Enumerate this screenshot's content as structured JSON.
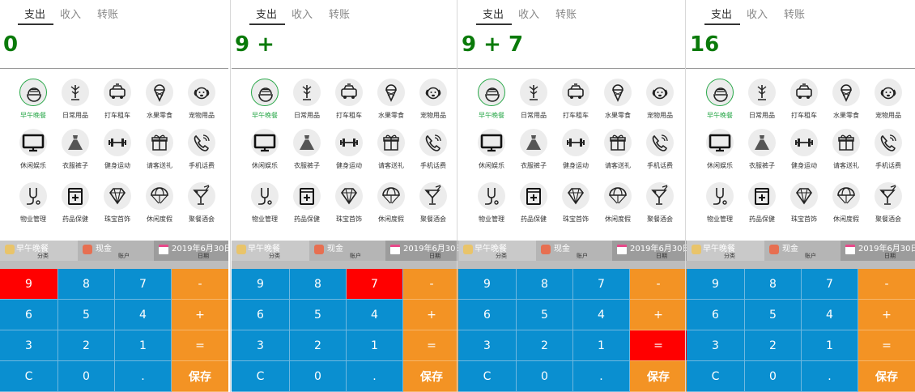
{
  "tabs": [
    "支出",
    "收入",
    "转账"
  ],
  "categories": [
    {
      "label": "早午晚餐",
      "icon": "rice-bowl-icon"
    },
    {
      "label": "日常用品",
      "icon": "plant-icon"
    },
    {
      "label": "打车租车",
      "icon": "taxi-icon"
    },
    {
      "label": "水果零食",
      "icon": "ice-cream-icon"
    },
    {
      "label": "宠物用品",
      "icon": "dog-icon"
    },
    {
      "label": "休闲娱乐",
      "icon": "monitor-icon"
    },
    {
      "label": "衣服裤子",
      "icon": "dress-icon"
    },
    {
      "label": "健身运动",
      "icon": "dumbbell-icon"
    },
    {
      "label": "请客送礼",
      "icon": "gift-icon"
    },
    {
      "label": "手机话费",
      "icon": "phone-icon"
    },
    {
      "label": "物业管理",
      "icon": "plug-icon"
    },
    {
      "label": "药品保健",
      "icon": "medicine-box-icon"
    },
    {
      "label": "珠宝首饰",
      "icon": "diamond-icon"
    },
    {
      "label": "休闲度假",
      "icon": "parachute-icon"
    },
    {
      "label": "聚餐酒会",
      "icon": "cocktail-icon"
    }
  ],
  "info": {
    "category_value": "早午晚餐",
    "category_caption": "分类",
    "account_value": "现金",
    "account_caption": "账户",
    "date_value": "2019年6月30日",
    "date_caption": "日期"
  },
  "keys": [
    "9",
    "8",
    "7",
    "-",
    "6",
    "5",
    "4",
    "+",
    "3",
    "2",
    "1",
    "=",
    "C",
    "0",
    ".",
    "保存"
  ],
  "screens": [
    {
      "display": "0",
      "pressed_key": "9"
    },
    {
      "display": "9 +",
      "pressed_key": "7"
    },
    {
      "display": "9 + 7",
      "pressed_key": "="
    },
    {
      "display": "16",
      "pressed_key": ""
    }
  ],
  "colors": {
    "number_key": "#0a8fd0",
    "operator_key": "#f39324",
    "pressed_key": "#ff0000",
    "display_text": "#0a7a0a",
    "selected_category": "#2aa84a"
  }
}
